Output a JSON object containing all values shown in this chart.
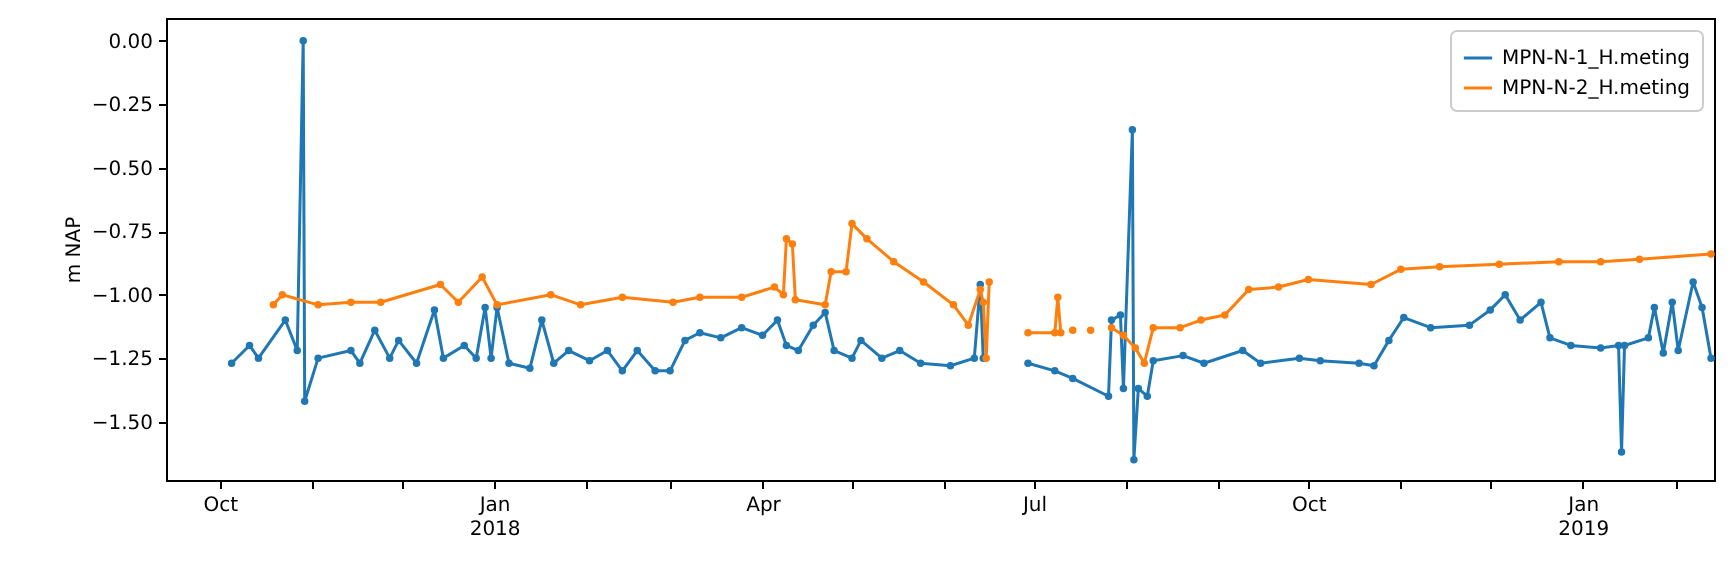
{
  "chart_data": {
    "type": "line",
    "ylabel": "m NAP",
    "xlim": [
      "2017-09-13",
      "2019-02-14"
    ],
    "xticks": [
      {
        "value": "2017-10-01",
        "label": "Oct"
      },
      {
        "value": "2017-11-01",
        "label": null
      },
      {
        "value": "2017-12-01",
        "label": null
      },
      {
        "value": "2018-01-01",
        "label": "Jan\n2018"
      },
      {
        "value": "2018-02-01",
        "label": null
      },
      {
        "value": "2018-03-01",
        "label": null
      },
      {
        "value": "2018-04-01",
        "label": "Apr"
      },
      {
        "value": "2018-05-01",
        "label": null
      },
      {
        "value": "2018-06-01",
        "label": null
      },
      {
        "value": "2018-07-01",
        "label": "Jul"
      },
      {
        "value": "2018-08-01",
        "label": null
      },
      {
        "value": "2018-09-01",
        "label": null
      },
      {
        "value": "2018-10-01",
        "label": "Oct"
      },
      {
        "value": "2018-11-01",
        "label": null
      },
      {
        "value": "2018-12-01",
        "label": null
      },
      {
        "value": "2019-01-01",
        "label": "Jan\n2019"
      },
      {
        "value": "2019-02-01",
        "label": null
      }
    ],
    "ylim": [
      -1.73,
      0.09
    ],
    "yticks": [
      {
        "value": -1.5,
        "label": "−1.50"
      },
      {
        "value": -1.25,
        "label": "−1.25"
      },
      {
        "value": -1.0,
        "label": "−1.00"
      },
      {
        "value": -0.75,
        "label": "−0.75"
      },
      {
        "value": -0.5,
        "label": "−0.50"
      },
      {
        "value": -0.25,
        "label": "−0.25"
      },
      {
        "value": 0,
        "label": "0.00"
      }
    ],
    "grid": false,
    "legend": "top right",
    "marker": "circle",
    "line_style": "solid",
    "series": [
      {
        "name": "MPN-N-1_H.meting",
        "color": "#1f77b4",
        "x": [
          "2017-10-05",
          "2017-10-11",
          "2017-10-14",
          "2017-10-23",
          "2017-10-27",
          "2017-10-29",
          "2017-10-29T12:00",
          "2017-11-03",
          "2017-11-14",
          "2017-11-17",
          "2017-11-22",
          "2017-11-27",
          "2017-11-30",
          "2017-12-06",
          "2017-12-12",
          "2017-12-15",
          "2017-12-22",
          "2017-12-26",
          "2017-12-29",
          "2017-12-31",
          "2018-01-02",
          "2018-01-06",
          "2018-01-13",
          "2018-01-17",
          "2018-01-21",
          "2018-01-26",
          "2018-02-02",
          "2018-02-08",
          "2018-02-13",
          "2018-02-18",
          "2018-02-24",
          "2018-03-01",
          "2018-03-06",
          "2018-03-11",
          "2018-03-18",
          "2018-03-25",
          "2018-04-01",
          "2018-04-06",
          "2018-04-09",
          "2018-04-13",
          "2018-04-18",
          "2018-04-22",
          "2018-04-25",
          "2018-05-01",
          "2018-05-04",
          "2018-05-11",
          "2018-05-17",
          "2018-05-24",
          "2018-06-03",
          "2018-06-11",
          "2018-06-13",
          "2018-06-14",
          "2018-06-22",
          "2018-06-29",
          "2018-07-08",
          "2018-07-14",
          "2018-07-26",
          "2018-07-27",
          "2018-07-30",
          "2018-07-31",
          "2018-08-03",
          "2018-08-03T12:00",
          "2018-08-05",
          "2018-08-08",
          "2018-08-10",
          "2018-08-20",
          "2018-08-27",
          "2018-09-09",
          "2018-09-15",
          "2018-09-28",
          "2018-10-05",
          "2018-10-18",
          "2018-10-23",
          "2018-10-28",
          "2018-11-02",
          "2018-11-11",
          "2018-11-24",
          "2018-12-01",
          "2018-12-06",
          "2018-12-11",
          "2018-12-18",
          "2018-12-21",
          "2018-12-28",
          "2019-01-07",
          "2019-01-13",
          "2019-01-14",
          "2019-01-15",
          "2019-01-23",
          "2019-01-25",
          "2019-01-28",
          "2019-01-31",
          "2019-02-02",
          "2019-02-07",
          "2019-02-10",
          "2019-02-13"
        ],
        "values": [
          -1.27,
          -1.2,
          -1.25,
          -1.1,
          -1.22,
          0.0,
          -1.42,
          -1.25,
          -1.22,
          -1.27,
          -1.14,
          -1.25,
          -1.18,
          -1.27,
          -1.06,
          -1.25,
          -1.2,
          -1.25,
          -1.05,
          -1.25,
          -1.05,
          -1.27,
          -1.29,
          -1.1,
          -1.27,
          -1.22,
          -1.26,
          -1.22,
          -1.3,
          -1.22,
          -1.3,
          -1.3,
          -1.18,
          -1.15,
          -1.17,
          -1.13,
          -1.16,
          -1.1,
          -1.2,
          -1.22,
          -1.12,
          -1.07,
          -1.22,
          -1.25,
          -1.18,
          -1.25,
          -1.22,
          -1.27,
          -1.28,
          -1.25,
          -0.96,
          -1.25,
          null,
          -1.27,
          -1.3,
          -1.33,
          -1.4,
          -1.1,
          -1.08,
          -1.37,
          -0.35,
          -1.65,
          -1.37,
          -1.4,
          -1.26,
          -1.24,
          -1.27,
          -1.22,
          -1.27,
          -1.25,
          -1.26,
          -1.27,
          -1.28,
          -1.18,
          -1.09,
          -1.13,
          -1.12,
          -1.06,
          -1.0,
          -1.1,
          -1.03,
          -1.17,
          -1.2,
          -1.21,
          -1.2,
          -1.62,
          -1.2,
          -1.17,
          -1.05,
          -1.23,
          -1.03,
          -1.22,
          -0.95,
          -1.05,
          -1.25
        ]
      },
      {
        "name": "MPN-N-2_H.meting",
        "color": "#ff7f0e",
        "x": [
          "2017-10-19",
          "2017-10-22",
          "2017-11-03",
          "2017-11-14",
          "2017-11-24",
          "2017-12-14",
          "2017-12-20",
          "2017-12-28",
          "2018-01-02",
          "2018-01-20",
          "2018-01-30",
          "2018-02-13",
          "2018-03-02",
          "2018-03-11",
          "2018-03-25",
          "2018-04-05",
          "2018-04-08",
          "2018-04-09",
          "2018-04-11",
          "2018-04-12",
          "2018-04-22",
          "2018-04-24",
          "2018-04-29",
          "2018-05-01",
          "2018-05-06",
          "2018-05-15",
          "2018-05-25",
          "2018-06-04",
          "2018-06-09",
          "2018-06-13",
          "2018-06-14",
          "2018-06-15",
          "2018-06-16",
          "2018-06-22",
          "2018-06-29",
          "2018-07-08",
          "2018-07-09",
          "2018-07-10",
          "2018-07-11",
          "2018-07-14",
          "2018-07-17",
          "2018-07-20",
          "2018-07-23",
          "2018-07-27",
          "2018-07-31",
          "2018-08-04",
          "2018-08-07",
          "2018-08-10",
          "2018-08-19",
          "2018-08-26",
          "2018-09-03",
          "2018-09-11",
          "2018-09-21",
          "2018-10-01",
          "2018-10-22",
          "2018-11-01",
          "2018-11-14",
          "2018-12-04",
          "2018-12-24",
          "2019-01-07",
          "2019-01-20",
          "2019-02-13"
        ],
        "values": [
          -1.04,
          -1.0,
          -1.04,
          -1.03,
          -1.03,
          -0.96,
          -1.03,
          -0.93,
          -1.04,
          -1.0,
          -1.04,
          -1.01,
          -1.03,
          -1.01,
          -1.01,
          -0.97,
          -1.0,
          -0.78,
          -0.8,
          -1.02,
          -1.04,
          -0.91,
          -0.91,
          -0.72,
          -0.78,
          -0.87,
          -0.95,
          -1.04,
          -1.12,
          -0.98,
          -1.03,
          -1.25,
          -0.95,
          null,
          -1.15,
          -1.15,
          -1.01,
          -1.15,
          null,
          -1.14,
          null,
          -1.14,
          null,
          -1.13,
          -1.16,
          -1.21,
          -1.27,
          -1.13,
          -1.13,
          -1.1,
          -1.08,
          -0.98,
          -0.97,
          -0.94,
          -0.96,
          -0.9,
          -0.89,
          -0.88,
          -0.87,
          -0.87,
          -0.86,
          -0.84
        ]
      }
    ]
  }
}
